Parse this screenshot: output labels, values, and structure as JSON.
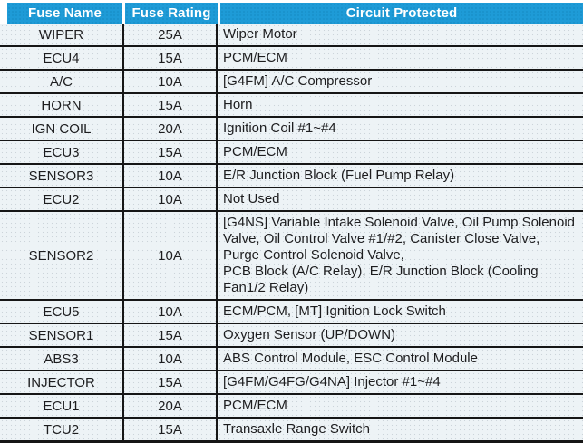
{
  "colors": {
    "header_bg": "#1e9bd7",
    "header_dot": "#1181b6",
    "row_bg": "#edf3f6",
    "row_dot": "#ccd4da",
    "border": "#161616",
    "text": "#1d1d1f",
    "header_text": "#ffffff"
  },
  "header": {
    "columns": [
      {
        "label": "Fuse Name"
      },
      {
        "label": "Fuse Rating"
      },
      {
        "label": "Circuit Protected"
      }
    ]
  },
  "rows": [
    {
      "name": "WIPER",
      "rating": "25A",
      "circuit": "Wiper Motor"
    },
    {
      "name": "ECU4",
      "rating": "15A",
      "circuit": "PCM/ECM"
    },
    {
      "name": "A/C",
      "rating": "10A",
      "circuit": "[G4FM] A/C Compressor"
    },
    {
      "name": "HORN",
      "rating": "15A",
      "circuit": "Horn"
    },
    {
      "name": "IGN COIL",
      "rating": "20A",
      "circuit": "Ignition Coil #1~#4"
    },
    {
      "name": "ECU3",
      "rating": "15A",
      "circuit": "PCM/ECM"
    },
    {
      "name": "SENSOR3",
      "rating": "10A",
      "circuit": "E/R Junction Block (Fuel Pump Relay)"
    },
    {
      "name": "ECU2",
      "rating": "10A",
      "circuit": "Not Used"
    },
    {
      "name": "SENSOR2",
      "rating": "10A",
      "circuit": "[G4NS] Variable Intake Solenoid Valve, Oil Pump Solenoid Valve, Oil Control Valve #1/#2, Canister Close Valve, Purge Control Solenoid Valve,\nPCB Block (A/C Relay), E/R Junction Block (Cooling Fan1/2 Relay)"
    },
    {
      "name": "ECU5",
      "rating": "10A",
      "circuit": "ECM/PCM, [MT] Ignition Lock Switch"
    },
    {
      "name": "SENSOR1",
      "rating": "15A",
      "circuit": "Oxygen Sensor (UP/DOWN)"
    },
    {
      "name": "ABS3",
      "rating": "10A",
      "circuit": "ABS Control Module, ESC Control Module"
    },
    {
      "name": "INJECTOR",
      "rating": "15A",
      "circuit": "[G4FM/G4FG/G4NA] Injector #1~#4"
    },
    {
      "name": "ECU1",
      "rating": "20A",
      "circuit": "PCM/ECM"
    },
    {
      "name": "TCU2",
      "rating": "15A",
      "circuit": "Transaxle Range Switch"
    }
  ]
}
